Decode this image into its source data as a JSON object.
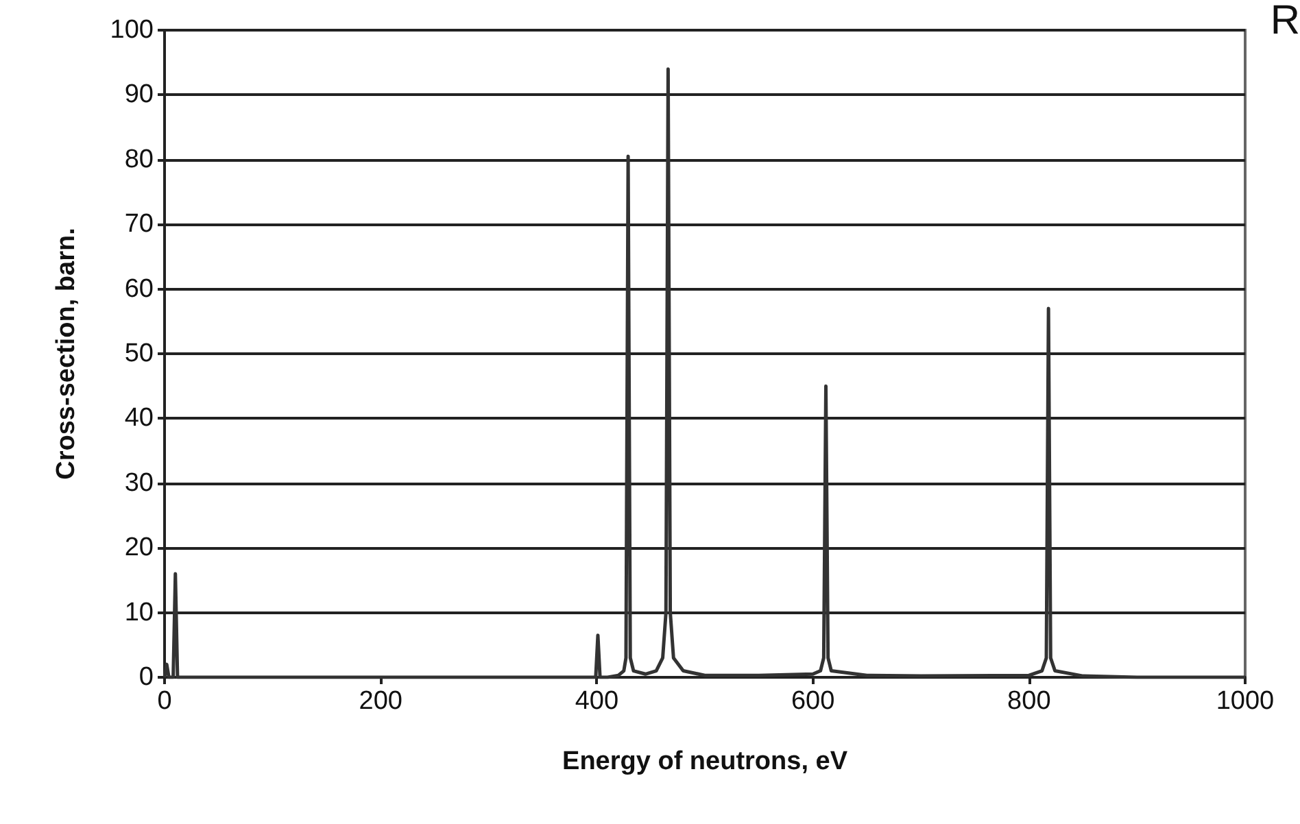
{
  "chart_data": {
    "type": "line",
    "xlabel": "Energy of neutrons, eV",
    "ylabel": "Cross-section, barn.",
    "annotations": [
      "R"
    ],
    "x": [
      0,
      2,
      4,
      8,
      10,
      12,
      16,
      100,
      200,
      300,
      395,
      399,
      401,
      403,
      410,
      420,
      425,
      427,
      429,
      431,
      434,
      445,
      455,
      461,
      464,
      466,
      468,
      471,
      480,
      500,
      550,
      600,
      607,
      610,
      612,
      614,
      617,
      650,
      700,
      800,
      812,
      816,
      818,
      820,
      824,
      850,
      900,
      1000
    ],
    "series": [
      {
        "color": "#333333",
        "values": [
          0,
          2,
          0,
          0,
          16,
          0,
          0,
          0,
          0,
          0,
          0,
          0,
          6.5,
          0,
          0,
          0.3,
          1,
          3,
          80.5,
          3,
          1,
          0.5,
          1,
          3,
          10,
          94,
          10,
          3,
          1,
          0.3,
          0.3,
          0.5,
          1,
          3,
          45,
          3,
          1,
          0.3,
          0.2,
          0.3,
          1,
          3,
          57,
          3,
          1,
          0.2,
          0,
          0
        ]
      }
    ],
    "xlim": [
      0,
      1000
    ],
    "xticks": [
      0,
      200,
      400,
      600,
      800,
      1000
    ],
    "ylim": [
      0,
      100
    ],
    "yticks": [
      0,
      10,
      20,
      30,
      40,
      50,
      60,
      70,
      80,
      90,
      100
    ],
    "grid": "y",
    "marker": "none",
    "line_style": "solid"
  }
}
